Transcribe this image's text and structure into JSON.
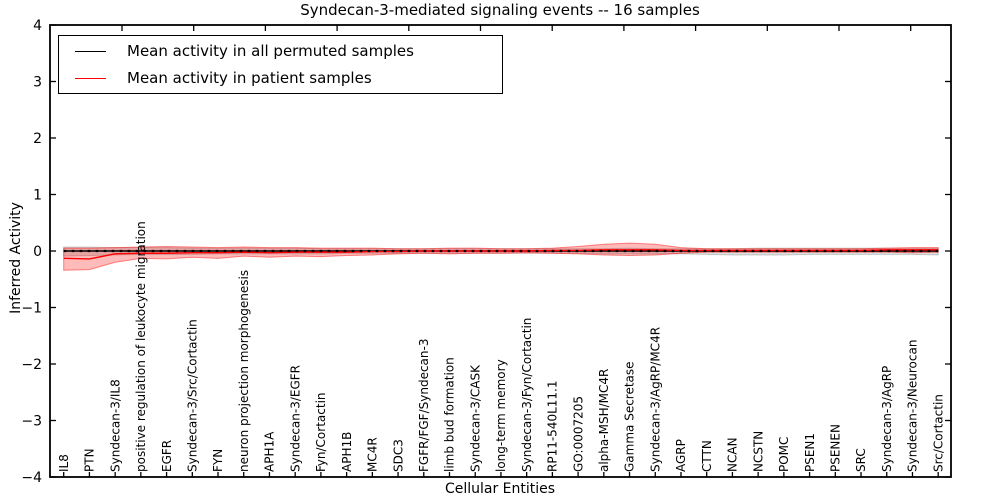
{
  "chart_data": {
    "type": "line",
    "title": "Syndecan-3-mediated signaling events -- 16 samples",
    "xlabel": "Cellular Entities",
    "ylabel": "Inferred Activity",
    "ylim": [
      -4,
      4
    ],
    "yticks": [
      4,
      3,
      2,
      1,
      0,
      -1,
      -2,
      -3,
      -4
    ],
    "grid": false,
    "legend_position": "upper left",
    "categories": [
      "IL8",
      "PTN",
      "Syndecan-3/IL8",
      "positive regulation of leukocyte migration",
      "EGFR",
      "Syndecan-3/Src/Cortactin",
      "FYN",
      "neuron projection morphogenesis",
      "APH1A",
      "Syndecan-3/EGFR",
      "Fyn/Cortactin",
      "APH1B",
      "MC4R",
      "SDC3",
      "FGFR/FGF/Syndecan-3",
      "limb bud formation",
      "Syndecan-3/CASK",
      "long-term memory",
      "Syndecan-3/Fyn/Cortactin",
      "RP11-540L11.1",
      "GO:0007205",
      "alpha-MSH/MC4R",
      "Gamma Secretase",
      "Syndecan-3/AgRP/MC4R",
      "AGRP",
      "CTTN",
      "NCAN",
      "NCSTN",
      "POMC",
      "PSEN1",
      "PSENEN",
      "SRC",
      "Syndecan-3/AgRP",
      "Syndecan-3/Neurocan",
      "Src/Cortactin"
    ],
    "series": [
      {
        "name": "Mean activity in all permuted samples",
        "color": "#000000",
        "band_color": "rgba(0,0,0,0.13)",
        "band_edge": "rgba(0,0,0,0.18)",
        "values": [
          0,
          0,
          0,
          0,
          0,
          0,
          0,
          0,
          0,
          0,
          0,
          0,
          0,
          0,
          0,
          0,
          0,
          0,
          0,
          0,
          0,
          0,
          0,
          0,
          0,
          0,
          0,
          0,
          0,
          0,
          0,
          0,
          0,
          0,
          0
        ],
        "band_lower": [
          -0.09,
          -0.08,
          -0.07,
          -0.06,
          -0.06,
          -0.06,
          -0.05,
          -0.05,
          -0.05,
          -0.05,
          -0.05,
          -0.04,
          -0.04,
          -0.04,
          -0.04,
          -0.04,
          -0.04,
          -0.04,
          -0.04,
          -0.04,
          -0.04,
          -0.05,
          -0.05,
          -0.05,
          -0.05,
          -0.06,
          -0.07,
          -0.07,
          -0.07,
          -0.06,
          -0.06,
          -0.06,
          -0.06,
          -0.06,
          -0.07
        ],
        "band_upper": [
          0.07,
          0.07,
          0.06,
          0.06,
          0.06,
          0.05,
          0.05,
          0.05,
          0.05,
          0.05,
          0.04,
          0.04,
          0.04,
          0.04,
          0.04,
          0.04,
          0.04,
          0.04,
          0.04,
          0.04,
          0.04,
          0.04,
          0.05,
          0.04,
          0.04,
          0.04,
          0.04,
          0.05,
          0.05,
          0.05,
          0.05,
          0.05,
          0.05,
          0.05,
          0.05
        ]
      },
      {
        "name": "Mean activity in patient samples",
        "color": "#ff0000",
        "band_color": "rgba(255,0,0,0.27)",
        "band_edge": "rgba(255,0,0,0.45)",
        "values": [
          -0.13,
          -0.14,
          -0.05,
          -0.04,
          -0.04,
          -0.03,
          -0.03,
          -0.02,
          -0.03,
          -0.02,
          -0.02,
          -0.02,
          -0.01,
          -0.01,
          0.0,
          0.0,
          0.0,
          0.0,
          0.0,
          0.01,
          0.01,
          0.02,
          0.02,
          0.02,
          0.01,
          0.01,
          0.01,
          0.01,
          0.01,
          0.01,
          0.01,
          0.01,
          0.02,
          0.02,
          0.02
        ],
        "band_lower": [
          -0.34,
          -0.33,
          -0.2,
          -0.13,
          -0.14,
          -0.11,
          -0.13,
          -0.09,
          -0.11,
          -0.09,
          -0.1,
          -0.08,
          -0.07,
          -0.05,
          -0.04,
          -0.05,
          -0.04,
          -0.04,
          -0.03,
          -0.04,
          -0.05,
          -0.07,
          -0.08,
          -0.07,
          -0.04,
          -0.02,
          -0.02,
          -0.02,
          -0.02,
          -0.02,
          -0.02,
          -0.02,
          -0.02,
          -0.03,
          -0.02
        ],
        "band_upper": [
          0.05,
          0.05,
          0.06,
          0.07,
          0.08,
          0.07,
          0.06,
          0.07,
          0.06,
          0.06,
          0.05,
          0.05,
          0.05,
          0.04,
          0.04,
          0.05,
          0.05,
          0.04,
          0.04,
          0.05,
          0.08,
          0.12,
          0.14,
          0.12,
          0.06,
          0.04,
          0.04,
          0.04,
          0.04,
          0.04,
          0.04,
          0.04,
          0.05,
          0.06,
          0.06
        ]
      }
    ],
    "zero_reference_line": {
      "style": "dotted",
      "color": "#000000",
      "y": 0
    }
  }
}
